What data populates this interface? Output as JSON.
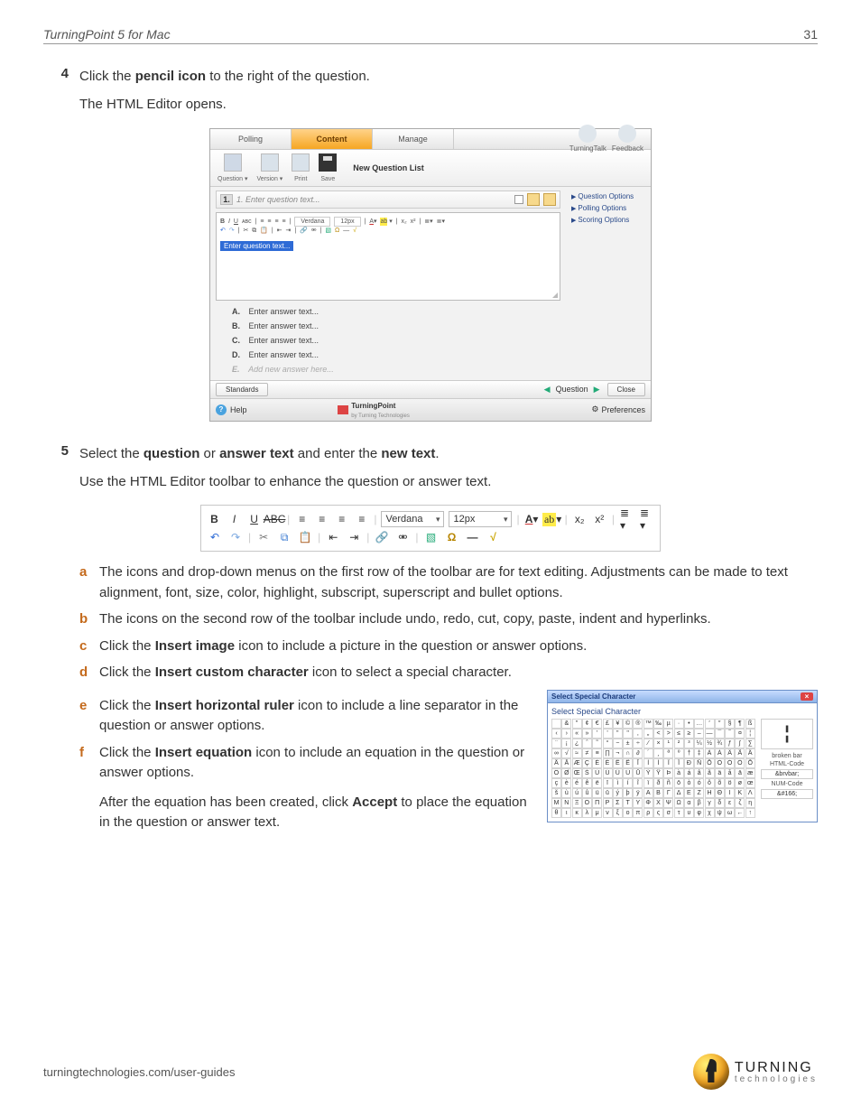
{
  "header": {
    "doc_title": "TurningPoint 5 for Mac",
    "page_number": "31"
  },
  "step4": {
    "num": "4",
    "line1_a": "Click the ",
    "line1_b": "pencil icon",
    "line1_c": " to the right of the question.",
    "line2": "The HTML Editor opens."
  },
  "appwin": {
    "tabs": {
      "polling": "Polling",
      "content": "Content",
      "manage": "Manage"
    },
    "icons_right": {
      "a": "TurningTalk",
      "b": "Feedback"
    },
    "tb1": {
      "question": "Question ▾",
      "version": "Version ▾",
      "print": "Print",
      "save": "Save",
      "heading": "New Question List"
    },
    "qrow": {
      "num": "1.",
      "placeholder": "1. Enter question text..."
    },
    "editor": {
      "font": "Verdana",
      "size": "12px",
      "selected": "Enter question text..."
    },
    "answers": {
      "a": "Enter answer text...",
      "b": "Enter answer text...",
      "c": "Enter answer text...",
      "d": "Enter answer text...",
      "add": "Add new answer here..."
    },
    "side": {
      "qopt": "Question Options",
      "popt": "Polling Options",
      "sopt": "Scoring Options"
    },
    "footer": {
      "standards": "Standards",
      "question_nav": "Question",
      "close": "Close",
      "help": "Help",
      "brand1": "Turning",
      "brand2": "Point",
      "brand3": "by Turning Technologies",
      "prefs": "Preferences"
    }
  },
  "step5": {
    "num": "5",
    "a": "Select the ",
    "b": "question",
    "c": " or ",
    "d": "answer text",
    "e": " and enter the ",
    "f": "new text",
    "g": ".",
    "sub": "Use the HTML Editor toolbar to enhance the question or answer text."
  },
  "tb2": {
    "font": "Verdana",
    "size": "12px"
  },
  "list": {
    "a": "The icons and drop-down menus on the first row of the toolbar are for text editing. Adjustments can be made to text alignment, font, size, color, highlight, subscript, superscript and bullet options.",
    "b": "The icons on the second row of the toolbar include undo, redo, cut, copy, paste, indent and hyperlinks.",
    "c_a": "Click the ",
    "c_b": "Insert image",
    "c_c": " icon to include a picture in the question or answer options.",
    "d_a": "Click the ",
    "d_b": "Insert custom character",
    "d_c": " icon to select a special character.",
    "e_a": "Click the ",
    "e_b": "Insert horizontal ruler",
    "e_c": " icon to include a line separator in the question or answer options.",
    "f_a": "Click the ",
    "f_b": "Insert equation",
    "f_c": " icon to include an equation in the question or answer options.",
    "after_a": "After the equation has been created, click ",
    "after_b": "Accept",
    "after_c": " to place the equation in the question or answer text."
  },
  "dlg": {
    "title": "Select Special Character",
    "sub": "Select Special Character",
    "chars": [
      " ",
      "&",
      "\"",
      "¢",
      "€",
      "£",
      "¥",
      "©",
      "®",
      "™",
      "‰",
      "µ",
      "·",
      "•",
      "…",
      "′",
      "″",
      "§",
      "¶",
      "ß",
      "‹",
      "›",
      "«",
      "»",
      "'",
      "'",
      "\"",
      "\"",
      ",",
      "„",
      "<",
      ">",
      "≤",
      "≥",
      "–",
      "—",
      "¯",
      "‾",
      "¤",
      "¦",
      "¨",
      "¡",
      "¿",
      "ˆ",
      "˜",
      "°",
      "−",
      "±",
      "÷",
      "⁄",
      "×",
      "¹",
      "²",
      "³",
      "¼",
      "½",
      "¾",
      "ƒ",
      "∫",
      "∑",
      "∞",
      "√",
      "≈",
      "≠",
      "≡",
      "∏",
      "¬",
      "∩",
      "∂",
      "´",
      "¸",
      "ª",
      "º",
      "†",
      "‡",
      "À",
      "Á",
      "Â",
      "Ã",
      "Ä",
      "Å",
      "Ā",
      "Æ",
      "Ç",
      "È",
      "É",
      "Ê",
      "Ë",
      "Ī",
      "Ì",
      "Í",
      "Î",
      "Ï",
      "Ð",
      "Ñ",
      "Ō",
      "Ò",
      "Ó",
      "Ô",
      "Õ",
      "Ö",
      "Ø",
      "Œ",
      "Š",
      "Ù",
      "Ú",
      "Û",
      "Ü",
      "Ū",
      "Ý",
      "Ÿ",
      "Þ",
      "à",
      "á",
      "â",
      "ã",
      "ä",
      "å",
      "ā",
      "æ",
      "ç",
      "è",
      "é",
      "ê",
      "ë",
      "ī",
      "ì",
      "í",
      "î",
      "ï",
      "ð",
      "ñ",
      "ō",
      "ò",
      "ó",
      "ô",
      "õ",
      "ö",
      "ø",
      "œ",
      "š",
      "ù",
      "ú",
      "û",
      "ü",
      "ū",
      "ý",
      "þ",
      "ÿ",
      "Α",
      "Β",
      "Γ",
      "Δ",
      "Ε",
      "Ζ",
      "Η",
      "Θ",
      "Ι",
      "Κ",
      "Λ",
      "Μ",
      "Ν",
      "Ξ",
      "Ο",
      "Π",
      "Ρ",
      "Σ",
      "Τ",
      "Υ",
      "Φ",
      "Χ",
      "Ψ",
      "Ω",
      "α",
      "β",
      "γ",
      "δ",
      "ε",
      "ζ",
      "η",
      "θ",
      "ι",
      "κ",
      "λ",
      "μ",
      "ν",
      "ξ",
      "ο",
      "π",
      "ρ",
      "ς",
      "σ",
      "τ",
      "υ",
      "φ",
      "χ",
      "ψ",
      "ω",
      "←",
      "↑",
      "→",
      "↓",
      "↔",
      "◊",
      "♠",
      "♣",
      "♥",
      "♦",
      " "
    ],
    "preview": "¦",
    "name": "broken bar",
    "html_label": "HTML-Code",
    "html_code": "&brvbar;",
    "num_label": "NUM-Code",
    "num_code": "&#166;"
  },
  "footer": {
    "url": "turningtechnologies.com/user-guides",
    "logo1": "TURNING",
    "logo2": "technologies"
  }
}
